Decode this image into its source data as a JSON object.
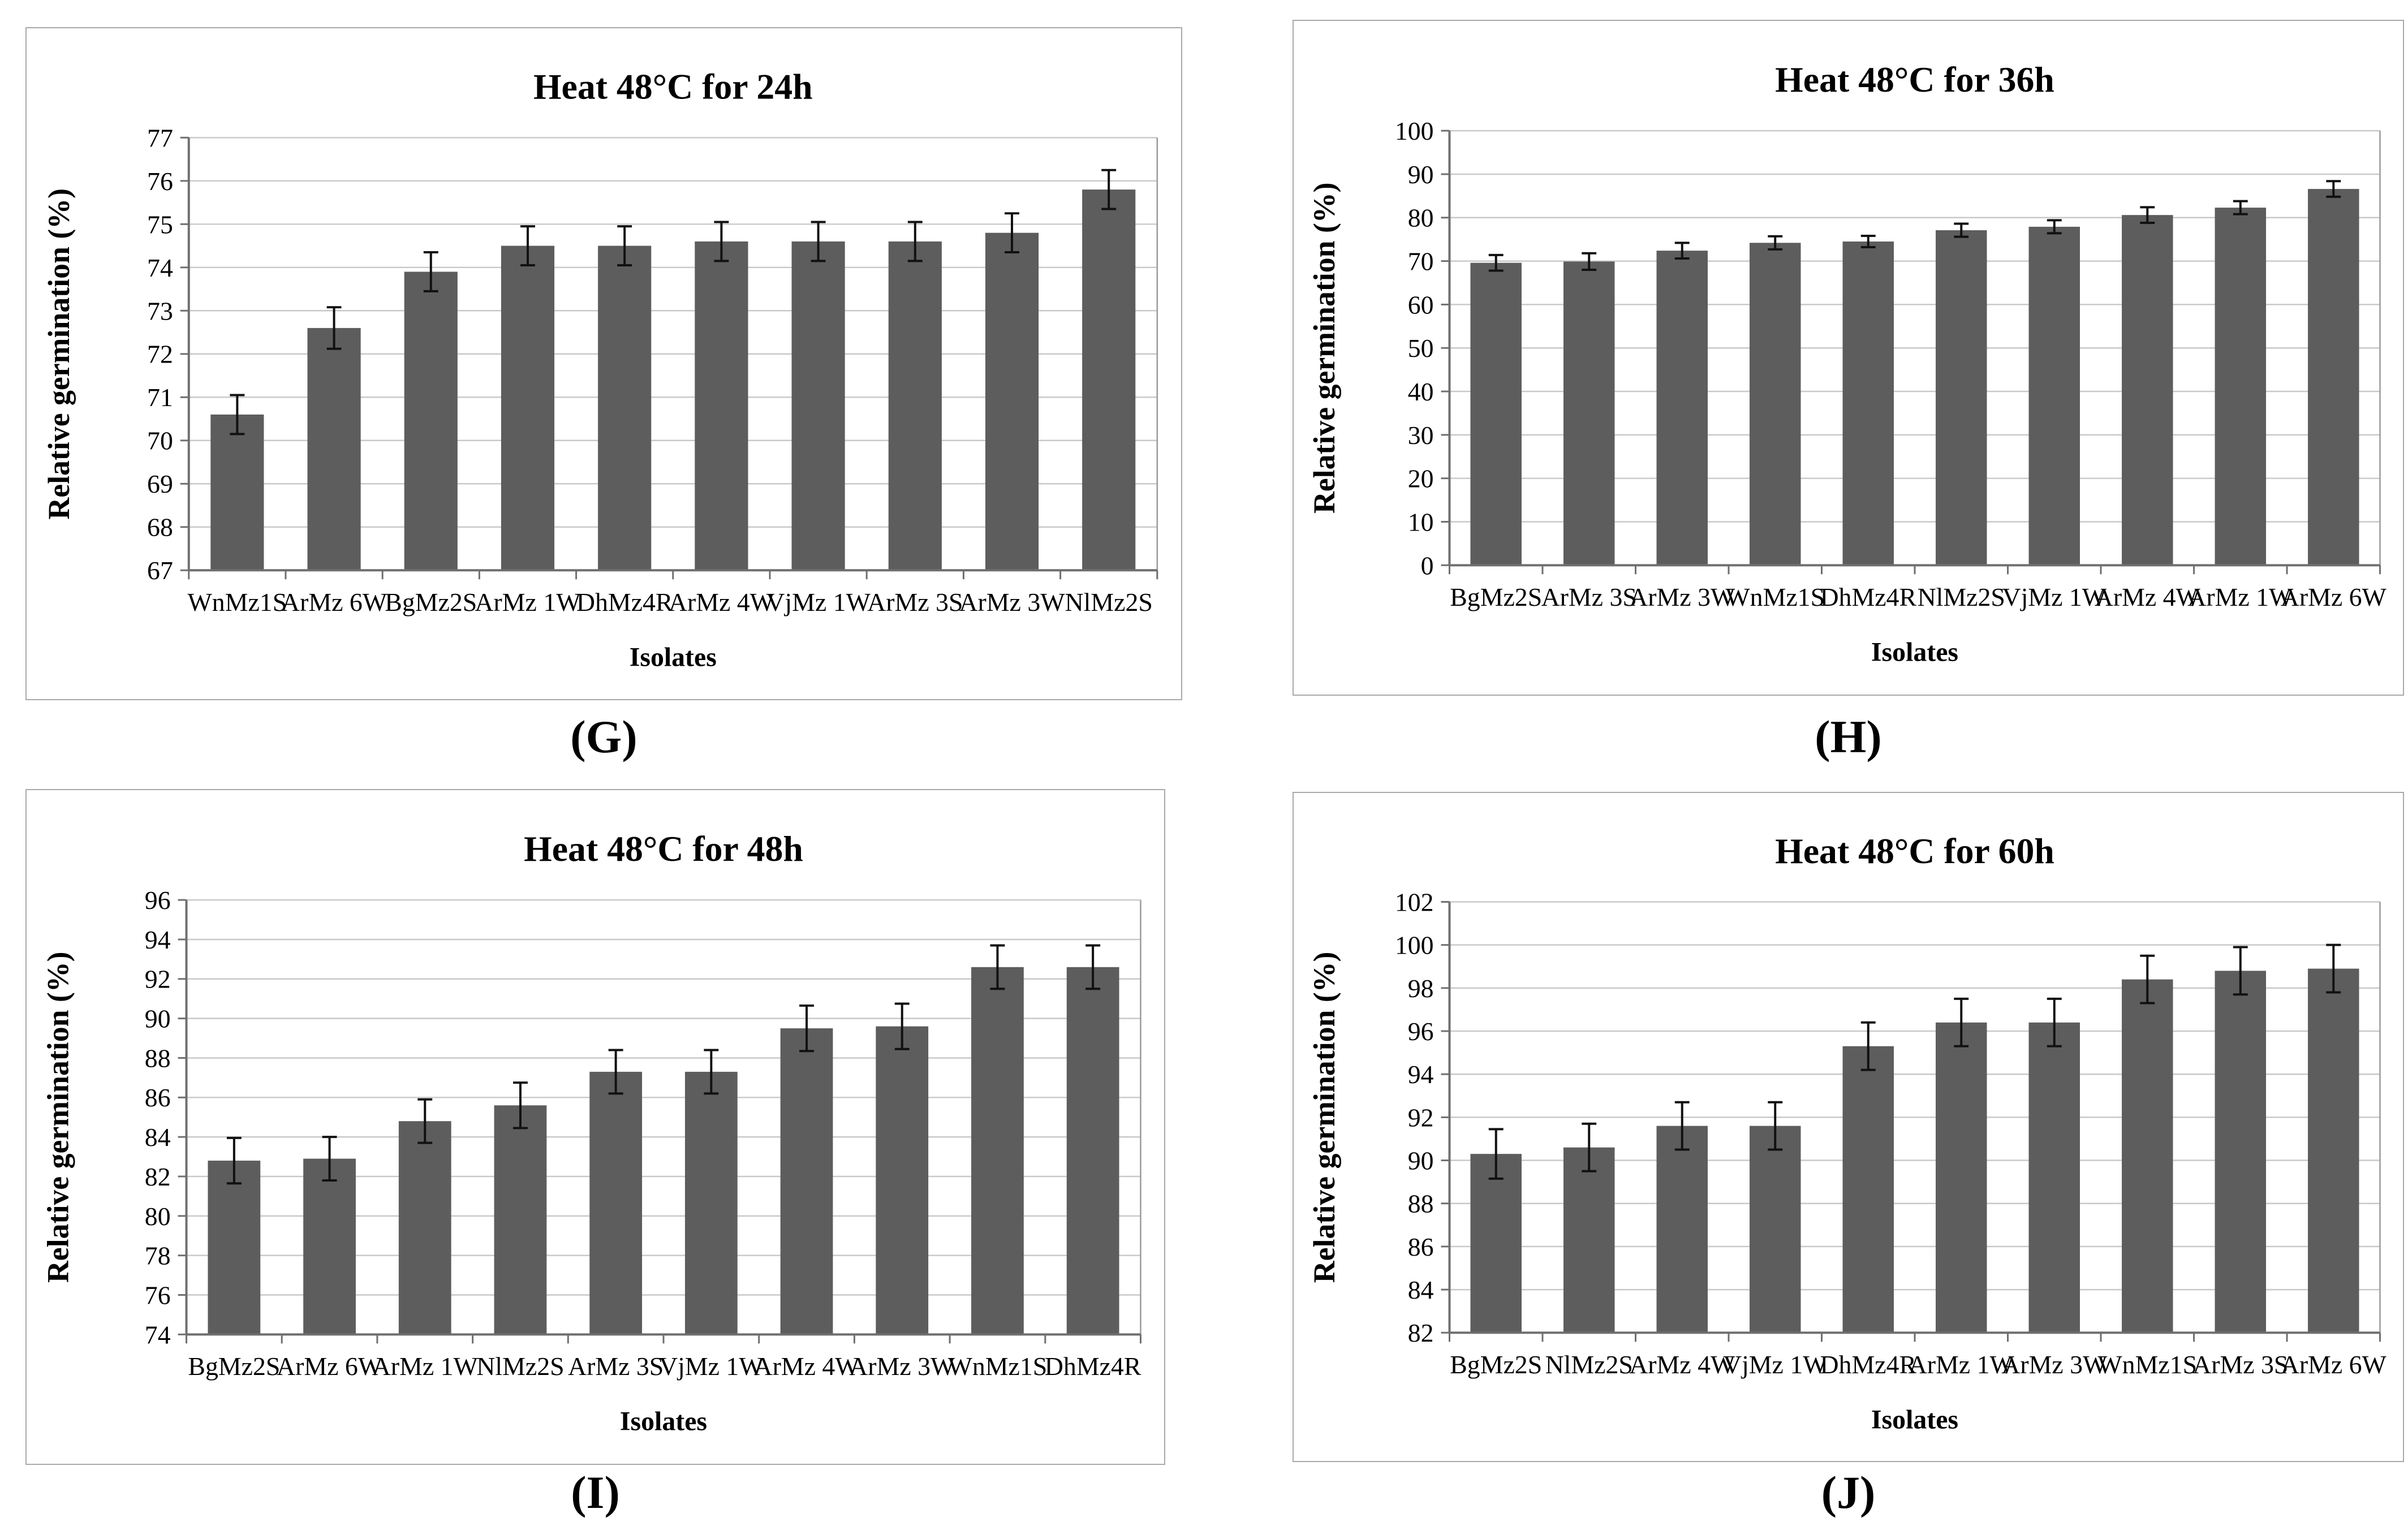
{
  "page": {
    "background": "#ffffff"
  },
  "styles": {
    "bar_color": "#5d5d5d",
    "grid_color": "#c9c9c9",
    "axis_color": "#6f6f6f",
    "right_border_color": "#9a9a9a",
    "error_bar_color": "#111111",
    "panel_border_color": "#a9a9a9",
    "text_color": "#000000"
  },
  "captions": [
    "(G)",
    "(H)",
    "(I)",
    "(J)"
  ],
  "chart_data": [
    {
      "id": "G",
      "type": "bar",
      "title": "Heat 48°C for 24h",
      "xlabel": "Isolates",
      "ylabel": "Relative germination (%)",
      "ylim": [
        67,
        77
      ],
      "ytick_step": 1,
      "grid": true,
      "legend": "none",
      "categories": [
        "WnMz1S",
        "ArMz 6W",
        "BgMz2S",
        "ArMz 1W",
        "DhMz4R",
        "ArMz 4W",
        "VjMz 1W",
        "ArMz 3S",
        "ArMz 3W",
        "NlMz2S"
      ],
      "values": [
        70.6,
        72.6,
        73.9,
        74.5,
        74.5,
        74.6,
        74.6,
        74.6,
        74.8,
        75.8
      ],
      "errors": [
        0.45,
        0.48,
        0.45,
        0.45,
        0.45,
        0.45,
        0.45,
        0.45,
        0.45,
        0.45
      ]
    },
    {
      "id": "H",
      "type": "bar",
      "title": "Heat 48°C for 36h",
      "xlabel": "Isolates",
      "ylabel": "Relative germination (%)",
      "ylim": [
        0,
        100
      ],
      "ytick_step": 10,
      "grid": true,
      "legend": "none",
      "categories": [
        "BgMz2S",
        "ArMz 3S",
        "ArMz 3W",
        "WnMz1S",
        "DhMz4R",
        "NlMz2S",
        "VjMz 1W",
        "ArMz 4W",
        "ArMz 1W",
        "ArMz 6W"
      ],
      "values": [
        69.6,
        69.9,
        72.4,
        74.2,
        74.5,
        77.1,
        77.9,
        80.6,
        82.3,
        86.6
      ],
      "errors": [
        1.8,
        1.9,
        1.8,
        1.5,
        1.3,
        1.5,
        1.5,
        1.8,
        1.5,
        1.8
      ]
    },
    {
      "id": "I",
      "type": "bar",
      "title": "Heat 48°C for 48h",
      "xlabel": "Isolates",
      "ylabel": "Relative germination (%)",
      "ylim": [
        74,
        96
      ],
      "ytick_step": 2,
      "grid": true,
      "legend": "none",
      "categories": [
        "BgMz2S",
        "ArMz 6W",
        "ArMz 1W",
        "NlMz2S",
        "ArMz 3S",
        "VjMz 1W",
        "ArMz 4W",
        "ArMz 3W",
        "WnMz1S",
        "DhMz4R"
      ],
      "values": [
        82.8,
        82.9,
        84.8,
        85.6,
        87.3,
        87.3,
        89.5,
        89.6,
        92.6,
        92.6
      ],
      "errors": [
        1.15,
        1.1,
        1.1,
        1.15,
        1.1,
        1.1,
        1.15,
        1.15,
        1.1,
        1.1
      ]
    },
    {
      "id": "J",
      "type": "bar",
      "title": "Heat 48°C for 60h",
      "xlabel": "Isolates",
      "ylabel": "Relative germination (%)",
      "ylim": [
        82,
        102
      ],
      "ytick_step": 2,
      "grid": true,
      "legend": "none",
      "categories": [
        "BgMz2S",
        "NlMz2S",
        "ArMz 4W",
        "VjMz 1W",
        "DhMz4R",
        "ArMz 1W",
        "ArMz 3W",
        "WnMz1S",
        "ArMz 3S",
        "ArMz 6W"
      ],
      "values": [
        90.3,
        90.6,
        91.6,
        91.6,
        95.3,
        96.4,
        96.4,
        98.4,
        98.8,
        98.9
      ],
      "errors": [
        1.15,
        1.1,
        1.1,
        1.1,
        1.1,
        1.1,
        1.1,
        1.1,
        1.1,
        1.1
      ]
    }
  ]
}
